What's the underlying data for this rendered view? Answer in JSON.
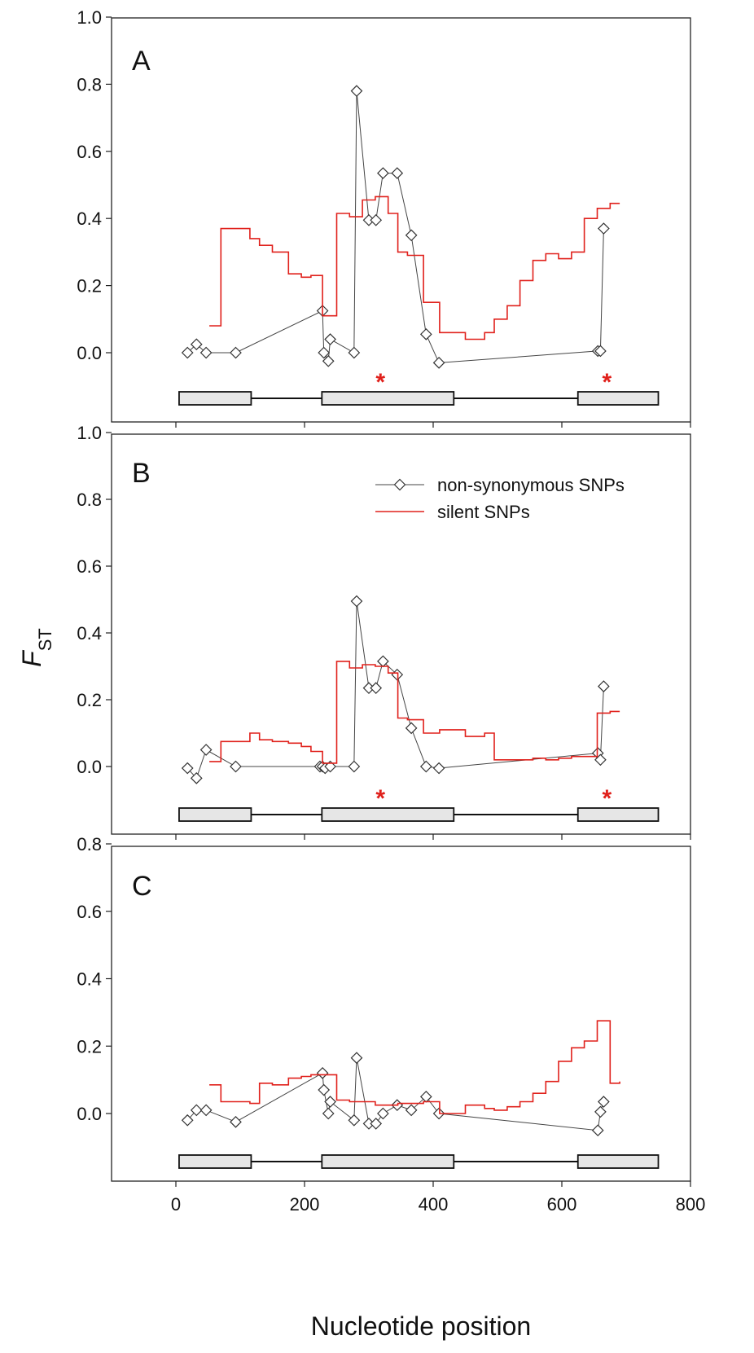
{
  "colors": {
    "nonsyn": "#444444",
    "silent": "#e0201b",
    "exon_fill": "#e6e6e6",
    "star": "#e0201b"
  },
  "xaxis": {
    "label": "Nucleotide position",
    "ticks": [
      0,
      200,
      400,
      600,
      800
    ],
    "tick_labels": [
      "0",
      "200",
      "400",
      "600",
      "800"
    ],
    "range": [
      -100,
      800
    ]
  },
  "ylabel": {
    "main": "F",
    "sub": "ST"
  },
  "legend": {
    "placement": "top-right of panel B",
    "items": [
      "non-synonymous SNPs",
      "silent SNPs"
    ]
  },
  "gene_structure": {
    "exons": [
      [
        5,
        117
      ],
      [
        227,
        432
      ],
      [
        625,
        750
      ]
    ],
    "introns": [
      [
        117,
        227
      ],
      [
        432,
        625
      ]
    ]
  },
  "chart_data": [
    {
      "type": "line",
      "panel": "A",
      "ylim": [
        -0.2,
        1.0
      ],
      "yticks": [
        0.0,
        0.2,
        0.4,
        0.6,
        0.8,
        1.0
      ],
      "ytick_labels": [
        "0.0",
        "0.2",
        "0.4",
        "0.6",
        "0.8",
        "1.0"
      ],
      "stars": [
        318,
        670
      ],
      "series": [
        {
          "name": "non-synonymous SNPs",
          "style": "line-diamond",
          "x": [
            18,
            32,
            47,
            93,
            228,
            230,
            237,
            240,
            277,
            281,
            300,
            311,
            322,
            344,
            366,
            389,
            409,
            656,
            660,
            665
          ],
          "y": [
            0.0,
            0.025,
            0.0,
            0.0,
            0.125,
            0.0,
            -0.025,
            0.04,
            0.0,
            0.78,
            0.395,
            0.395,
            0.535,
            0.535,
            0.35,
            0.055,
            -0.03,
            0.005,
            0.005,
            0.37
          ]
        },
        {
          "name": "silent SNPs",
          "style": "step",
          "x": [
            52,
            70,
            115,
            130,
            150,
            175,
            195,
            210,
            228,
            250,
            270,
            290,
            310,
            330,
            345,
            360,
            385,
            410,
            450,
            480,
            495,
            515,
            535,
            555,
            575,
            595,
            615,
            635,
            655,
            675,
            690
          ],
          "y": [
            0.08,
            0.37,
            0.34,
            0.32,
            0.3,
            0.235,
            0.225,
            0.23,
            0.11,
            0.415,
            0.405,
            0.455,
            0.465,
            0.415,
            0.3,
            0.29,
            0.15,
            0.06,
            0.04,
            0.06,
            0.1,
            0.14,
            0.215,
            0.275,
            0.295,
            0.28,
            0.3,
            0.4,
            0.43,
            0.445,
            0.445
          ]
        }
      ]
    },
    {
      "type": "line",
      "panel": "B",
      "ylim": [
        -0.2,
        1.0
      ],
      "yticks": [
        0.0,
        0.2,
        0.4,
        0.6,
        0.8,
        1.0
      ],
      "ytick_labels": [
        "0.0",
        "0.2",
        "0.4",
        "0.6",
        "0.8",
        "1.0"
      ],
      "stars": [
        318,
        670
      ],
      "series": [
        {
          "name": "non-synonymous SNPs",
          "style": "line-diamond",
          "x": [
            18,
            32,
            47,
            93,
            224,
            228,
            232,
            240,
            277,
            281,
            300,
            311,
            322,
            344,
            366,
            389,
            409,
            656,
            660,
            665
          ],
          "y": [
            -0.005,
            -0.035,
            0.05,
            0.0,
            0.0,
            0.0,
            -0.005,
            0.0,
            0.0,
            0.495,
            0.235,
            0.235,
            0.315,
            0.275,
            0.115,
            0.0,
            -0.005,
            0.04,
            0.02,
            0.24
          ]
        },
        {
          "name": "silent SNPs",
          "style": "step",
          "x": [
            52,
            70,
            115,
            130,
            150,
            175,
            195,
            210,
            228,
            250,
            270,
            290,
            310,
            330,
            345,
            360,
            385,
            410,
            450,
            480,
            495,
            515,
            535,
            555,
            575,
            595,
            615,
            635,
            655,
            675,
            690
          ],
          "y": [
            0.015,
            0.075,
            0.1,
            0.08,
            0.075,
            0.07,
            0.06,
            0.045,
            0.01,
            0.315,
            0.295,
            0.305,
            0.3,
            0.28,
            0.145,
            0.14,
            0.1,
            0.11,
            0.09,
            0.1,
            0.02,
            0.02,
            0.02,
            0.025,
            0.02,
            0.025,
            0.03,
            0.03,
            0.16,
            0.165,
            0.165
          ]
        }
      ]
    },
    {
      "type": "line",
      "panel": "C",
      "ylim": [
        -0.2,
        0.8
      ],
      "yticks": [
        0.0,
        0.2,
        0.4,
        0.6,
        0.8
      ],
      "ytick_labels": [
        "0.0",
        "0.2",
        "0.4",
        "0.6",
        "0.8"
      ],
      "stars": [],
      "series": [
        {
          "name": "non-synonymous SNPs",
          "style": "line-diamond",
          "x": [
            18,
            32,
            47,
            93,
            228,
            230,
            237,
            240,
            277,
            281,
            300,
            311,
            322,
            344,
            366,
            389,
            409,
            656,
            660,
            665
          ],
          "y": [
            -0.02,
            0.01,
            0.01,
            -0.025,
            0.12,
            0.07,
            0.0,
            0.035,
            -0.02,
            0.165,
            -0.03,
            -0.03,
            0.0,
            0.025,
            0.01,
            0.05,
            0.0,
            -0.05,
            0.005,
            0.035
          ]
        },
        {
          "name": "silent SNPs",
          "style": "step",
          "x": [
            52,
            70,
            115,
            130,
            150,
            175,
            195,
            210,
            228,
            250,
            270,
            290,
            310,
            330,
            345,
            360,
            385,
            410,
            450,
            480,
            495,
            515,
            535,
            555,
            575,
            595,
            615,
            635,
            655,
            675,
            690
          ],
          "y": [
            0.085,
            0.035,
            0.03,
            0.09,
            0.085,
            0.105,
            0.11,
            0.115,
            0.115,
            0.04,
            0.035,
            0.035,
            0.025,
            0.025,
            0.03,
            0.03,
            0.035,
            0.0,
            0.025,
            0.015,
            0.01,
            0.02,
            0.035,
            0.06,
            0.095,
            0.155,
            0.195,
            0.215,
            0.275,
            0.09,
            0.095
          ]
        }
      ]
    }
  ]
}
